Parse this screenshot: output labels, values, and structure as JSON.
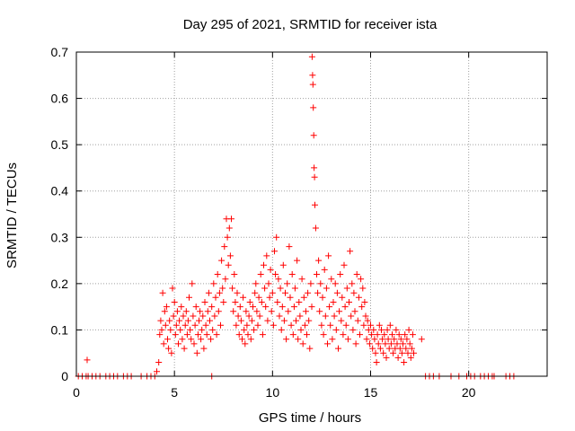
{
  "chart_data": {
    "type": "scatter",
    "title": "Day 295 of 2021, SRMTID for receiver ista",
    "xlabel": "GPS time / hours",
    "ylabel": "SRMTID / TECUs",
    "xlim": [
      0,
      24
    ],
    "ylim": [
      0,
      0.7
    ],
    "xticks": [
      0,
      5,
      10,
      15,
      20
    ],
    "xtick_labels": [
      "0",
      "5",
      "10",
      "15",
      "20"
    ],
    "yticks": [
      0,
      0.1,
      0.2,
      0.3,
      0.4,
      0.5,
      0.6,
      0.7
    ],
    "ytick_labels": [
      "0",
      "0.1",
      "0.2",
      "0.3",
      "0.4",
      "0.5",
      "0.6",
      "0.7"
    ],
    "grid": true,
    "marker": "+",
    "color": "#ff0000",
    "series": [
      {
        "name": "SRMTID",
        "x": [
          0.1,
          0.3,
          0.5,
          0.6,
          0.8,
          1.0,
          1.2,
          1.5,
          1.7,
          1.9,
          2.1,
          2.4,
          2.6,
          2.8,
          3.3,
          3.6,
          3.8,
          4.0,
          4.1,
          4.2,
          4.25,
          4.3,
          4.35,
          4.4,
          4.45,
          4.5,
          4.55,
          4.6,
          4.65,
          4.7,
          4.75,
          4.8,
          4.85,
          4.9,
          4.95,
          5.0,
          5.05,
          5.1,
          5.15,
          5.2,
          5.25,
          5.3,
          5.35,
          5.4,
          5.45,
          5.5,
          5.55,
          5.6,
          5.65,
          5.7,
          5.75,
          5.8,
          5.85,
          5.9,
          5.95,
          6.0,
          6.05,
          6.1,
          6.15,
          6.2,
          6.25,
          6.3,
          6.35,
          6.4,
          6.45,
          6.5,
          6.55,
          6.6,
          6.65,
          6.7,
          6.75,
          6.8,
          6.85,
          6.9,
          6.95,
          7.0,
          7.05,
          7.1,
          7.15,
          7.2,
          7.25,
          7.3,
          7.35,
          7.4,
          7.45,
          7.5,
          7.55,
          7.6,
          7.65,
          7.7,
          7.75,
          7.8,
          7.85,
          7.9,
          7.95,
          8.0,
          8.05,
          8.1,
          8.15,
          8.2,
          8.25,
          8.3,
          8.35,
          8.4,
          8.45,
          8.5,
          8.55,
          8.6,
          8.65,
          8.7,
          8.75,
          8.8,
          8.85,
          8.9,
          8.95,
          9.0,
          9.05,
          9.1,
          9.15,
          9.2,
          9.25,
          9.3,
          9.35,
          9.4,
          9.45,
          9.5,
          9.55,
          9.6,
          9.65,
          9.7,
          9.75,
          9.8,
          9.85,
          9.9,
          9.95,
          10.0,
          10.05,
          10.1,
          10.15,
          10.2,
          10.25,
          10.3,
          10.35,
          10.4,
          10.45,
          10.5,
          10.55,
          10.6,
          10.65,
          10.7,
          10.75,
          10.8,
          10.85,
          10.9,
          10.95,
          11.0,
          11.05,
          11.1,
          11.15,
          11.2,
          11.25,
          11.3,
          11.35,
          11.4,
          11.45,
          11.5,
          11.55,
          11.6,
          11.65,
          11.7,
          11.75,
          11.8,
          11.85,
          11.9,
          11.95,
          12.0,
          12.02,
          12.04,
          12.06,
          12.08,
          12.1,
          12.12,
          12.14,
          12.16,
          12.2,
          12.25,
          12.3,
          12.35,
          12.4,
          12.45,
          12.5,
          12.55,
          12.6,
          12.65,
          12.7,
          12.75,
          12.8,
          12.85,
          12.9,
          12.95,
          13.0,
          13.05,
          13.1,
          13.15,
          13.2,
          13.25,
          13.3,
          13.35,
          13.4,
          13.45,
          13.5,
          13.55,
          13.6,
          13.65,
          13.7,
          13.75,
          13.8,
          13.85,
          13.9,
          13.95,
          14.0,
          14.05,
          14.1,
          14.15,
          14.2,
          14.25,
          14.3,
          14.35,
          14.4,
          14.45,
          14.5,
          14.55,
          14.6,
          14.65,
          14.7,
          14.75,
          14.8,
          14.85,
          14.9,
          14.95,
          15.0,
          15.05,
          15.1,
          15.15,
          15.2,
          15.25,
          15.3,
          15.35,
          15.4,
          15.45,
          15.5,
          15.55,
          15.6,
          15.65,
          15.7,
          15.75,
          15.8,
          15.85,
          15.9,
          15.95,
          16.0,
          16.05,
          16.1,
          16.15,
          16.2,
          16.25,
          16.3,
          16.35,
          16.4,
          16.45,
          16.5,
          16.55,
          16.6,
          16.65,
          16.7,
          16.75,
          16.8,
          16.85,
          16.9,
          16.95,
          17.0,
          17.05,
          17.1,
          17.15,
          17.2,
          17.6,
          17.8,
          18.0,
          18.2,
          18.5,
          19.1,
          19.5,
          19.9,
          20.1,
          20.3,
          20.6,
          20.8,
          21.0,
          21.2,
          21.3,
          21.9,
          22.1,
          22.3,
          6.9,
          0.55
        ],
        "y": [
          0,
          0,
          0,
          0,
          0,
          0,
          0,
          0,
          0,
          0,
          0,
          0,
          0,
          0,
          0,
          0,
          0,
          0,
          0.01,
          0.03,
          0.09,
          0.12,
          0.1,
          0.18,
          0.07,
          0.14,
          0.11,
          0.15,
          0.08,
          0.06,
          0.12,
          0.1,
          0.05,
          0.19,
          0.13,
          0.16,
          0.09,
          0.11,
          0.14,
          0.07,
          0.12,
          0.1,
          0.15,
          0.08,
          0.13,
          0.06,
          0.11,
          0.14,
          0.09,
          0.12,
          0.17,
          0.1,
          0.08,
          0.2,
          0.13,
          0.07,
          0.11,
          0.15,
          0.05,
          0.09,
          0.12,
          0.14,
          0.08,
          0.1,
          0.13,
          0.06,
          0.16,
          0.11,
          0.09,
          0.14,
          0.18,
          0.12,
          0.08,
          0.15,
          0.1,
          0.2,
          0.13,
          0.17,
          0.09,
          0.22,
          0.14,
          0.18,
          0.11,
          0.25,
          0.19,
          0.16,
          0.28,
          0.21,
          0.34,
          0.3,
          0.24,
          0.32,
          0.26,
          0.34,
          0.19,
          0.14,
          0.22,
          0.16,
          0.11,
          0.18,
          0.13,
          0.09,
          0.15,
          0.12,
          0.08,
          0.17,
          0.1,
          0.07,
          0.14,
          0.11,
          0.09,
          0.13,
          0.16,
          0.08,
          0.12,
          0.15,
          0.1,
          0.18,
          0.2,
          0.14,
          0.11,
          0.17,
          0.13,
          0.22,
          0.16,
          0.09,
          0.24,
          0.19,
          0.15,
          0.26,
          0.12,
          0.2,
          0.17,
          0.23,
          0.14,
          0.18,
          0.11,
          0.27,
          0.22,
          0.3,
          0.16,
          0.21,
          0.13,
          0.19,
          0.1,
          0.15,
          0.24,
          0.12,
          0.18,
          0.08,
          0.2,
          0.14,
          0.28,
          0.17,
          0.11,
          0.22,
          0.09,
          0.15,
          0.19,
          0.12,
          0.25,
          0.08,
          0.16,
          0.13,
          0.1,
          0.21,
          0.07,
          0.17,
          0.11,
          0.14,
          0.09,
          0.18,
          0.12,
          0.06,
          0.2,
          0.15,
          0.69,
          0.65,
          0.63,
          0.58,
          0.52,
          0.45,
          0.43,
          0.37,
          0.32,
          0.22,
          0.18,
          0.25,
          0.14,
          0.2,
          0.11,
          0.17,
          0.09,
          0.23,
          0.13,
          0.19,
          0.07,
          0.26,
          0.15,
          0.11,
          0.21,
          0.08,
          0.16,
          0.13,
          0.2,
          0.1,
          0.18,
          0.06,
          0.14,
          0.22,
          0.12,
          0.17,
          0.09,
          0.24,
          0.15,
          0.11,
          0.19,
          0.08,
          0.16,
          0.27,
          0.13,
          0.2,
          0.1,
          0.18,
          0.14,
          0.07,
          0.22,
          0.12,
          0.17,
          0.09,
          0.21,
          0.15,
          0.19,
          0.11,
          0.16,
          0.13,
          0.08,
          0.12,
          0.1,
          0.07,
          0.11,
          0.09,
          0.06,
          0.1,
          0.08,
          0.05,
          0.03,
          0.09,
          0.07,
          0.11,
          0.06,
          0.1,
          0.08,
          0.05,
          0.09,
          0.07,
          0.04,
          0.1,
          0.08,
          0.06,
          0.11,
          0.07,
          0.09,
          0.05,
          0.08,
          0.06,
          0.1,
          0.07,
          0.04,
          0.09,
          0.06,
          0.08,
          0.05,
          0.07,
          0.03,
          0.09,
          0.06,
          0.08,
          0.05,
          0.1,
          0.07,
          0.04,
          0.06,
          0.09,
          0.05,
          0.08,
          0,
          0,
          0,
          0,
          0,
          0,
          0,
          0,
          0,
          0,
          0,
          0,
          0,
          0,
          0,
          0,
          0,
          0,
          0.035
        ]
      }
    ]
  }
}
